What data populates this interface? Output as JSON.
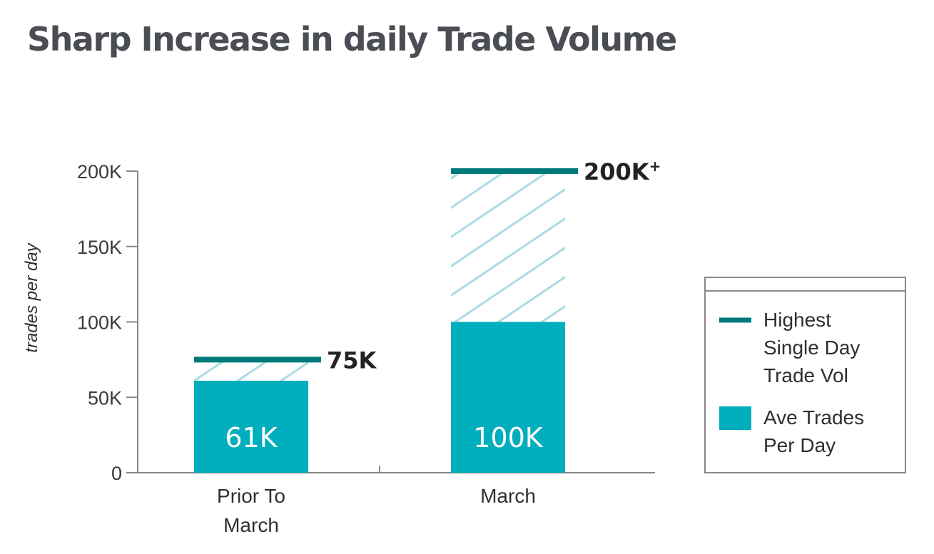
{
  "title": "Sharp Increase in daily Trade Volume",
  "chart_data": {
    "type": "bar",
    "categories": [
      "Prior To March",
      "March"
    ],
    "category_lines": [
      [
        "Prior To",
        "March"
      ],
      [
        "March"
      ]
    ],
    "ylabel": "trades per day",
    "ylim": [
      0,
      200000
    ],
    "yticks": [
      0,
      50000,
      100000,
      150000,
      200000
    ],
    "ytick_labels": [
      "0",
      "50K",
      "100K",
      "150K",
      "200K"
    ],
    "series": [
      {
        "name": "Ave Trades Per Day",
        "values": [
          61000,
          100000
        ],
        "labels": [
          "61K",
          "100K"
        ],
        "color": "#00aebd"
      },
      {
        "name": "Highest Single Day Trade Vol",
        "values": [
          75000,
          200000
        ],
        "labels": [
          "75K",
          "200K"
        ],
        "label_suffix": [
          "",
          "+"
        ],
        "color": "#00797c"
      }
    ],
    "hatch_color": "#a8dce3",
    "legend": {
      "placement": "right",
      "items": [
        {
          "lines": [
            "Highest",
            "Single Day",
            "Trade Vol"
          ],
          "symbol": "line"
        },
        {
          "lines": [
            "Ave Trades",
            "Per Day"
          ],
          "symbol": "box"
        }
      ]
    }
  }
}
